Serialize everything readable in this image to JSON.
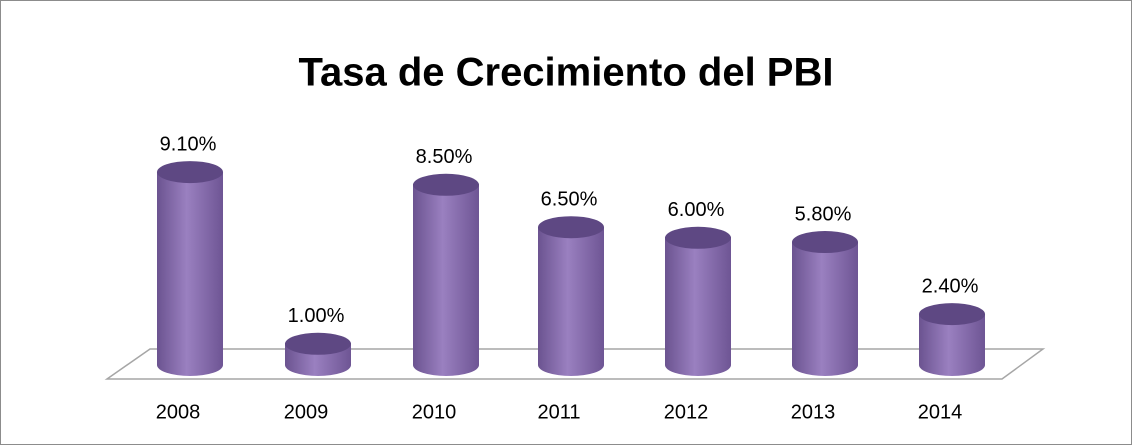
{
  "chart_data": {
    "type": "bar",
    "title": "Tasa de Crecimiento del PBI",
    "categories": [
      "2008",
      "2009",
      "2010",
      "2011",
      "2012",
      "2013",
      "2014"
    ],
    "values": [
      9.1,
      1.0,
      8.5,
      6.5,
      6.0,
      5.8,
      2.4
    ],
    "value_labels": [
      "9.10%",
      "1.00%",
      "8.50%",
      "6.50%",
      "6.00%",
      "5.80%",
      "2.40%"
    ],
    "color": "#8064a2"
  }
}
